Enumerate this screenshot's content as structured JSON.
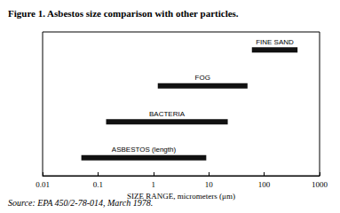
{
  "chart_data": {
    "type": "bar",
    "orientation": "horizontal",
    "title": "Figure 1. Asbestos size comparison with other particles.",
    "annotations": [
      "Source: EPA 450/2-78-014, March 1978."
    ],
    "xlabel": "SIZE RANGE, micrometers (μm)",
    "categories": [
      "FINE SAND",
      "FOG",
      "BACTERIA",
      "ASBESTOS (length)"
    ],
    "values": [
      [
        60,
        400
      ],
      [
        1.2,
        50
      ],
      [
        0.14,
        22
      ],
      [
        0.05,
        9
      ]
    ],
    "color": "#111111",
    "log": "x",
    "xlim": [
      0.01,
      1000
    ],
    "xticks": [
      0.01,
      0.1,
      1,
      10,
      100,
      1000
    ],
    "grid": false,
    "tick_labels": "x"
  }
}
